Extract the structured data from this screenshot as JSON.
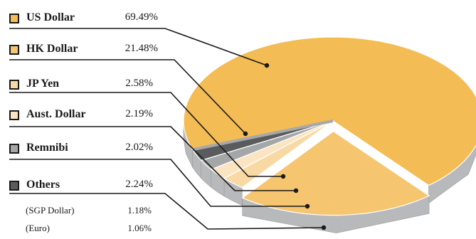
{
  "chart_data": {
    "type": "pie",
    "title": "",
    "series": [
      {
        "label": "US Dollar",
        "value": 69.49,
        "display": "69.49%",
        "color": "#f3bc55"
      },
      {
        "label": "HK Dollar",
        "value": 21.48,
        "display": "21.48%",
        "color": "#f5c56f"
      },
      {
        "label": "JP Yen",
        "value": 2.58,
        "display": "2.58%",
        "color": "#f8d9a3"
      },
      {
        "label": "Aust. Dollar",
        "value": 2.19,
        "display": "2.19%",
        "color": "#fbe4c2"
      },
      {
        "label": "Remnibi",
        "value": 2.02,
        "display": "2.02%",
        "color": "#a4a6a8"
      },
      {
        "label": "Others",
        "value": 2.24,
        "display": "2.24%",
        "color": "#5a5b5c"
      }
    ],
    "others_breakdown": [
      {
        "label": "(SGP Dollar)",
        "value": 1.18,
        "display": "1.18%"
      },
      {
        "label": "(Euro)",
        "value": 1.06,
        "display": "1.06%"
      }
    ],
    "legend_position": "left",
    "style": "3d-pie-with-leader-lines"
  }
}
